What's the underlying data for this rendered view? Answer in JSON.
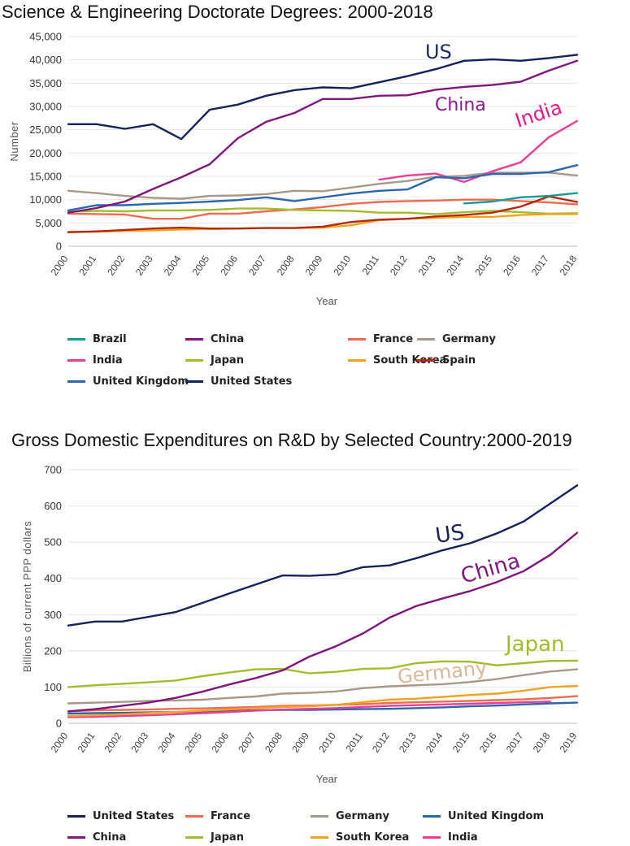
{
  "chart_data": [
    {
      "type": "line",
      "title": "Science & Engineering Doctorate Degrees: 2000-2018",
      "xlabel": "Year",
      "ylabel": "Number",
      "ylim": [
        0,
        45000
      ],
      "yticks": [
        "0",
        "5,000",
        "10,000",
        "15,000",
        "20,000",
        "25,000",
        "30,000",
        "35,000",
        "40,000",
        "45,000"
      ],
      "ytick_values": [
        0,
        5000,
        10000,
        15000,
        20000,
        25000,
        30000,
        35000,
        40000,
        45000
      ],
      "categories": [
        "2000",
        "2001",
        "2002",
        "2003",
        "2004",
        "2005",
        "2006",
        "2007",
        "2008",
        "2009",
        "2010",
        "2011",
        "2012",
        "2013",
        "2014",
        "2015",
        "2016",
        "2017",
        "2018"
      ],
      "grid": true,
      "legend_position": "bottom",
      "annotations": [
        {
          "text": "US",
          "color": "#1b2a5e"
        },
        {
          "text": "China",
          "color": "#8b1a8b"
        },
        {
          "text": "India",
          "color": "#e6198a"
        }
      ],
      "series": [
        {
          "name": "Brazil",
          "color": "#1a9a96",
          "values": [
            null,
            null,
            null,
            null,
            null,
            null,
            null,
            null,
            null,
            null,
            null,
            null,
            null,
            null,
            9200,
            9600,
            10500,
            10800,
            11400
          ]
        },
        {
          "name": "China",
          "color": "#80177d",
          "values": [
            7200,
            8200,
            9600,
            12300,
            14800,
            17600,
            23200,
            26700,
            28600,
            31600,
            31600,
            32300,
            32400,
            33600,
            34200,
            34600,
            35300,
            37700,
            39800
          ]
        },
        {
          "name": "France",
          "color": "#ef6a4f",
          "values": [
            7000,
            6900,
            6800,
            5900,
            5900,
            7000,
            7000,
            7500,
            7900,
            8400,
            9100,
            9500,
            9700,
            9800,
            10000,
            10000,
            9700,
            9400,
            9000
          ]
        },
        {
          "name": "Germany",
          "color": "#a89888",
          "values": [
            11900,
            11400,
            10800,
            10400,
            10200,
            10800,
            10900,
            11200,
            11900,
            11800,
            12600,
            13400,
            14000,
            14900,
            15100,
            15800,
            15800,
            15800,
            15200
          ]
        },
        {
          "name": "India",
          "color": "#ea3e95",
          "values": [
            null,
            null,
            null,
            null,
            null,
            null,
            null,
            null,
            null,
            null,
            null,
            14300,
            15200,
            15600,
            13800,
            16100,
            18000,
            23400,
            26900
          ]
        },
        {
          "name": "Japan",
          "color": "#a2bd2b",
          "values": [
            7400,
            7600,
            7500,
            7700,
            7700,
            7800,
            8100,
            8100,
            7800,
            7700,
            7600,
            7200,
            7200,
            6900,
            7300,
            7600,
            7300,
            7000,
            7100
          ]
        },
        {
          "name": "South Korea",
          "color": "#f4a21d",
          "values": [
            3100,
            3100,
            3300,
            3400,
            3600,
            3700,
            3800,
            3900,
            3900,
            4000,
            4500,
            5600,
            5900,
            6100,
            6300,
            6300,
            6700,
            6900,
            6900
          ]
        },
        {
          "name": "Spain",
          "color": "#b52a0e",
          "values": [
            3000,
            3200,
            3500,
            3800,
            4000,
            3800,
            3800,
            3900,
            3900,
            4200,
            5200,
            5700,
            5900,
            6400,
            6700,
            7200,
            8500,
            10700,
            9500
          ]
        },
        {
          "name": "United Kingdom",
          "color": "#2c67ad",
          "values": [
            7700,
            8800,
            8800,
            9100,
            9300,
            9600,
            9900,
            10500,
            9700,
            10500,
            11300,
            11900,
            12200,
            14800,
            14600,
            15500,
            15500,
            15900,
            17400
          ]
        },
        {
          "name": "United States",
          "color": "#16225a",
          "values": [
            26200,
            26200,
            25200,
            26200,
            23000,
            29300,
            30400,
            32300,
            33500,
            34100,
            33900,
            35200,
            36500,
            38000,
            39800,
            40100,
            39800,
            40400,
            41100
          ]
        }
      ]
    },
    {
      "type": "line",
      "title": "Gross Domestic Expenditures on R&D by Selected Country:2000-2019",
      "xlabel": "Year",
      "ylabel": "Billions of current PPP dollars",
      "ylim": [
        0,
        700
      ],
      "yticks": [
        "0",
        "100",
        "200",
        "300",
        "400",
        "500",
        "600",
        "700"
      ],
      "ytick_values": [
        0,
        100,
        200,
        300,
        400,
        500,
        600,
        700
      ],
      "categories": [
        "2000",
        "2001",
        "2002",
        "2003",
        "2004",
        "2005",
        "2006",
        "2007",
        "2008",
        "2009",
        "2010",
        "2011",
        "2012",
        "2013",
        "2014",
        "2015",
        "2016",
        "2017",
        "2018",
        "2019"
      ],
      "grid": true,
      "legend_position": "bottom",
      "annotations": [
        {
          "text": "US",
          "color": "#16225a"
        },
        {
          "text": "China",
          "color": "#80177d"
        },
        {
          "text": "Japan",
          "color": "#a2bd2b"
        },
        {
          "text": "Germany",
          "color": "#d9b89a"
        }
      ],
      "series": [
        {
          "name": "United States",
          "color": "#16225a",
          "values": [
            270,
            281,
            281,
            294,
            307,
            332,
            358,
            383,
            408,
            407,
            411,
            431,
            436,
            456,
            478,
            497,
            524,
            557,
            607,
            657
          ]
        },
        {
          "name": "France",
          "color": "#ef6a4f",
          "values": [
            33,
            36,
            37,
            38,
            40,
            41,
            43,
            45,
            48,
            49,
            51,
            53,
            56,
            58,
            60,
            62,
            64,
            66,
            70,
            75
          ]
        },
        {
          "name": "Germany",
          "color": "#a89888",
          "values": [
            55,
            57,
            59,
            62,
            63,
            65,
            70,
            74,
            82,
            84,
            88,
            97,
            102,
            105,
            108,
            114,
            122,
            133,
            143,
            149
          ]
        },
        {
          "name": "United Kingdom",
          "color": "#2c67ad",
          "values": [
            27,
            28,
            29,
            30,
            31,
            33,
            34,
            36,
            37,
            37,
            38,
            39,
            40,
            42,
            44,
            47,
            49,
            52,
            55,
            57
          ]
        },
        {
          "name": "China",
          "color": "#80177d",
          "values": [
            33,
            39,
            48,
            57,
            70,
            87,
            107,
            125,
            146,
            184,
            213,
            248,
            292,
            324,
            345,
            365,
            390,
            420,
            465,
            526
          ]
        },
        {
          "name": "Japan",
          "color": "#a2bd2b",
          "values": [
            100,
            105,
            109,
            113,
            118,
            130,
            140,
            149,
            150,
            138,
            142,
            150,
            152,
            166,
            171,
            170,
            160,
            166,
            172,
            173
          ]
        },
        {
          "name": "South Korea",
          "color": "#f4a21d",
          "values": [
            20,
            22,
            25,
            28,
            31,
            35,
            38,
            42,
            45,
            47,
            51,
            58,
            65,
            68,
            73,
            78,
            82,
            90,
            100,
            103
          ]
        },
        {
          "name": "India",
          "color": "#ea3e95",
          "values": [
            17,
            18,
            20,
            22,
            25,
            28,
            31,
            35,
            38,
            40,
            42,
            45,
            48,
            50,
            52,
            54,
            56,
            58,
            60,
            null
          ]
        }
      ]
    }
  ],
  "legend1": [
    "Brazil",
    "China",
    "France",
    "Germany",
    "India",
    "Japan",
    "South Korea",
    "Spain",
    "United Kingdom",
    "United States"
  ],
  "legend2": [
    "United States",
    "France",
    "Germany",
    "United Kingdom",
    "China",
    "Japan",
    "South Korea",
    "India"
  ]
}
